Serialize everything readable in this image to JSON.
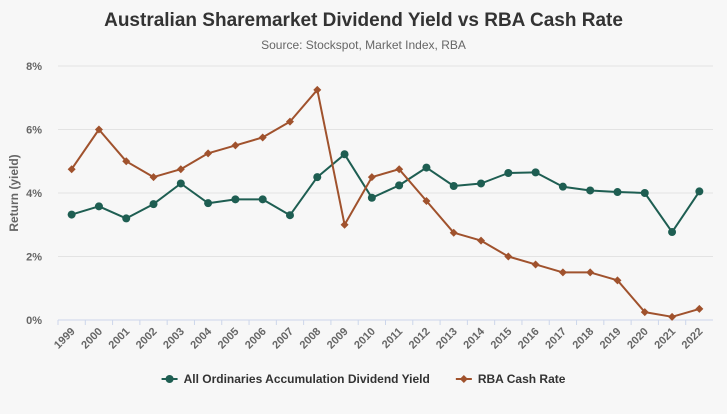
{
  "chart_data": {
    "type": "line",
    "title": "Australian Sharemarket Dividend Yield vs RBA Cash Rate",
    "subtitle": "Source: Stockspot, Market Index, RBA",
    "xlabel": "",
    "ylabel": "Return (yield)",
    "ylim": [
      0,
      8
    ],
    "yticks": [
      0,
      2,
      4,
      6,
      8
    ],
    "yticklabels": [
      "0%",
      "2%",
      "4%",
      "6%",
      "8%"
    ],
    "grid": true,
    "legend_position": "bottom",
    "categories": [
      "1999",
      "2000",
      "2001",
      "2002",
      "2003",
      "2004",
      "2005",
      "2006",
      "2007",
      "2008",
      "2009",
      "2010",
      "2011",
      "2012",
      "2013",
      "2014",
      "2015",
      "2016",
      "2017",
      "2018",
      "2019",
      "2020",
      "2021",
      "2022"
    ],
    "series": [
      {
        "name": "All Ordinaries Accumulation Dividend Yield",
        "color": "#1e5e52",
        "marker": "circle",
        "values": [
          3.32,
          3.58,
          3.2,
          3.65,
          4.3,
          3.68,
          3.8,
          3.8,
          3.3,
          4.5,
          5.22,
          3.85,
          4.24,
          4.8,
          4.22,
          4.3,
          4.63,
          4.65,
          4.2,
          4.08,
          4.03,
          4.0,
          2.77,
          4.05
        ]
      },
      {
        "name": "RBA Cash Rate",
        "color": "#a0522d",
        "marker": "diamond",
        "values": [
          4.75,
          6.0,
          5.0,
          4.5,
          4.75,
          5.25,
          5.5,
          5.75,
          6.25,
          7.25,
          3.0,
          4.5,
          4.75,
          3.75,
          2.75,
          2.5,
          2.0,
          1.75,
          1.5,
          1.5,
          1.25,
          0.25,
          0.1,
          0.35
        ]
      }
    ]
  }
}
